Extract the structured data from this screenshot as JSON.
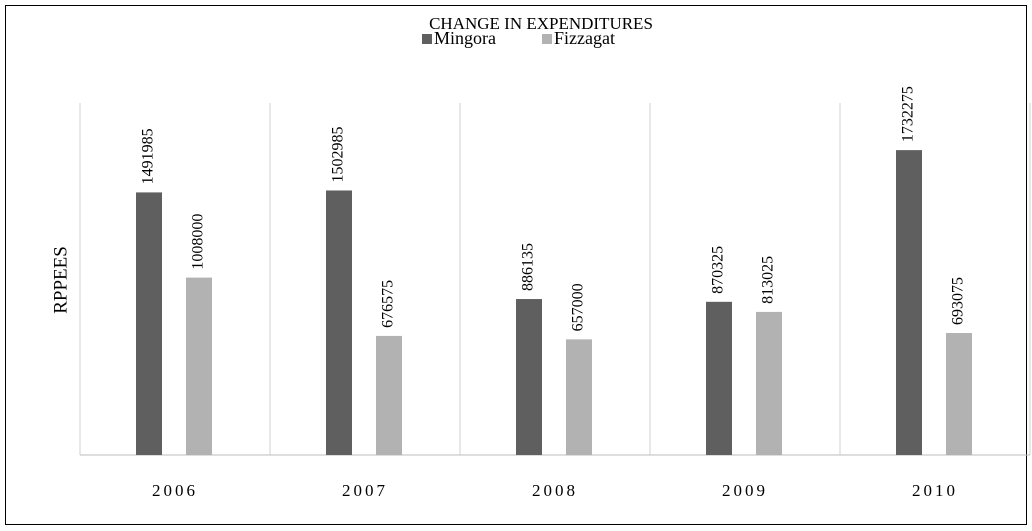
{
  "chart_data": {
    "type": "bar",
    "title": "CHANGE IN EXPENDITURES",
    "y_label": "RPPEES",
    "categories": [
      "2006",
      "2007",
      "2008",
      "2009",
      "2010"
    ],
    "series": [
      {
        "name": "Mingora",
        "color": "#5f5f5f",
        "values": [
          1491985,
          1502985,
          886135,
          870325,
          1732275
        ]
      },
      {
        "name": "Fizzagat",
        "color": "#b2b2b2",
        "values": [
          1008000,
          676575,
          657000,
          813025,
          693075
        ]
      }
    ],
    "ylim": [
      0,
      2000000
    ]
  }
}
